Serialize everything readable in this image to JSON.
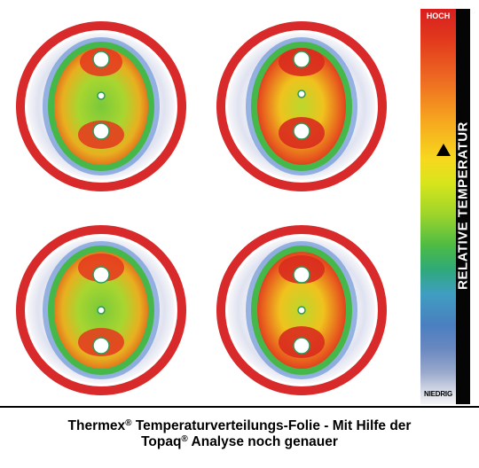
{
  "figure": {
    "panels": [
      {
        "id": "disc-top-left"
      },
      {
        "id": "disc-top-right"
      },
      {
        "id": "disc-bottom-left"
      },
      {
        "id": "disc-bottom-right"
      }
    ],
    "colors": {
      "rim": "#d82a2a",
      "halo": "#f3f3f7",
      "hot": "#e5361e",
      "warm": "#f5c41c",
      "cool": "#46b84a",
      "cold": "#3d6fd0"
    }
  },
  "scale": {
    "label_high": "HOCH",
    "label_low": "NIEDRIG",
    "title": "RELATIVE TEMPERATUR",
    "pointer_icon": "triangle-up-icon"
  },
  "caption": {
    "line1_brand": "Thermex",
    "line1_mark": "®",
    "line1_rest": " Temperaturverteilungs-Folie - Mit Hilfe der",
    "line2_brand": "Topaq",
    "line2_mark": "®",
    "line2_rest": " Analyse noch genauer"
  }
}
